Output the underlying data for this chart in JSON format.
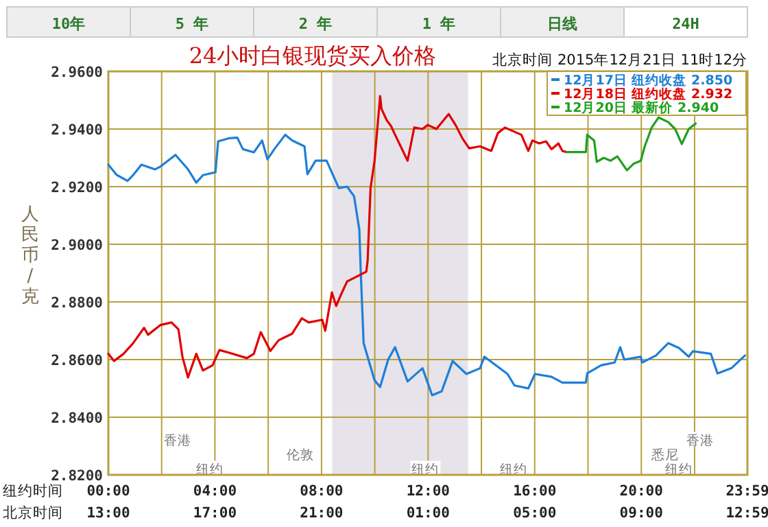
{
  "chart_data": {
    "type": "line",
    "title": "24小时白银现货买入价格",
    "subtitle": "北京时间 2015年12月21日 11时12分",
    "ylabel": "人民币/克",
    "xlabel": "纽约时间",
    "x2label": "北京时间",
    "annotations": [
      "10年",
      "5 年",
      "2 年",
      "1 年",
      "日线",
      "24H",
      {
        "text": "香港",
        "x": 2.6,
        "y": 2.8325
      },
      {
        "text": "伦敦",
        "x": 7.2,
        "y": 2.8275
      },
      {
        "text": "纽约",
        "x": 3.8,
        "y": 2.8225
      },
      {
        "text": "纽约",
        "x": 11.9,
        "y": 2.8225
      },
      {
        "text": "纽约",
        "x": 15.2,
        "y": 2.8225
      },
      {
        "text": "香港",
        "x": 22.2,
        "y": 2.8325
      },
      {
        "text": "悉尼",
        "x": 20.9,
        "y": 2.8275
      },
      {
        "text": "纽约",
        "x": 21.4,
        "y": 2.8225
      }
    ],
    "xlim": [
      0,
      23.983
    ],
    "x2lim": [
      "2015-12-20T13:00",
      "2015-12-21T12:59"
    ],
    "xticks": [
      {
        "value": 0,
        "label": "00:00"
      },
      {
        "value": 2,
        "label": null
      },
      {
        "value": 4,
        "label": "04:00"
      },
      {
        "value": 6,
        "label": null
      },
      {
        "value": 8,
        "label": "08:00"
      },
      {
        "value": 10,
        "label": null
      },
      {
        "value": 12,
        "label": "12:00"
      },
      {
        "value": 14,
        "label": null
      },
      {
        "value": 16,
        "label": "16:00"
      },
      {
        "value": 18,
        "label": null
      },
      {
        "value": 20,
        "label": "20:00"
      },
      {
        "value": 22,
        "label": null
      },
      {
        "value": 23.983,
        "label": "23:59"
      }
    ],
    "x2ticks": [
      {
        "value": "2015-12-20T13:00",
        "label": "13:00"
      },
      {
        "value": "2015-12-20T17:00",
        "label": "17:00"
      },
      {
        "value": "2015-12-20T21:00",
        "label": "21:00"
      },
      {
        "value": "2015-12-21T01:00",
        "label": "01:00"
      },
      {
        "value": "2015-12-21T05:00",
        "label": "05:00"
      },
      {
        "value": "2015-12-21T09:00",
        "label": "09:00"
      },
      {
        "value": "2015-12-21T12:59",
        "label": "12:59"
      }
    ],
    "ylim": [
      2.82,
      2.96
    ],
    "yticks": [
      {
        "value": 2.82,
        "label": "2.8200"
      },
      {
        "value": 2.84,
        "label": "2.8400"
      },
      {
        "value": 2.86,
        "label": "2.8600"
      },
      {
        "value": 2.88,
        "label": "2.8800"
      },
      {
        "value": 2.9,
        "label": "2.9000"
      },
      {
        "value": 2.92,
        "label": "2.9200"
      },
      {
        "value": 2.94,
        "label": "2.9400"
      },
      {
        "value": 2.96,
        "label": "2.9600"
      }
    ],
    "grid": true,
    "legend": "top right",
    "line_style": "solid",
    "marker": "none",
    "bands": [
      {
        "axis": "x",
        "from": 8.4,
        "to": 13.5,
        "color": "#e6e3ea"
      }
    ],
    "series": [
      {
        "name": "12月17日 纽约收盘 2.850",
        "color": "#1e7fd8",
        "x": [
          0,
          0.31,
          0.72,
          0.93,
          1.24,
          1.75,
          1.96,
          2.52,
          2.99,
          3.3,
          3.55,
          4.02,
          4.12,
          4.53,
          4.84,
          5.05,
          5.46,
          5.77,
          5.97,
          6.23,
          6.64,
          6.9,
          7.36,
          7.47,
          7.78,
          8.19,
          8.65,
          8.96,
          9.22,
          9.42,
          9.47,
          9.58,
          9.99,
          10.2,
          10.5,
          10.76,
          11.23,
          11.79,
          12.15,
          12.51,
          12.92,
          13.44,
          13.95,
          14.11,
          14.98,
          15.24,
          15.76,
          16.01,
          16.63,
          17.04,
          17.92,
          17.97,
          18.49,
          19,
          19.21,
          19.36,
          19.98,
          20.03,
          20.55,
          21.01,
          21.42,
          21.78,
          21.94,
          22.61,
          22.86,
          23.38,
          23.89
        ],
        "values": [
          2.9276,
          2.9241,
          2.922,
          2.924,
          2.9276,
          2.926,
          2.927,
          2.931,
          2.926,
          2.9214,
          2.924,
          2.925,
          2.9357,
          2.9368,
          2.937,
          2.933,
          2.9319,
          2.936,
          2.9295,
          2.933,
          2.938,
          2.936,
          2.934,
          2.9243,
          2.929,
          2.929,
          2.9195,
          2.92,
          2.9167,
          2.905,
          2.891,
          2.8657,
          2.8528,
          2.8505,
          2.86,
          2.8643,
          2.8524,
          2.857,
          2.8476,
          2.849,
          2.8595,
          2.855,
          2.857,
          2.861,
          2.855,
          2.851,
          2.85,
          2.855,
          2.854,
          2.852,
          2.852,
          2.8552,
          2.858,
          2.859,
          2.8643,
          2.86,
          2.861,
          2.859,
          2.8614,
          2.8657,
          2.864,
          2.861,
          2.8629,
          2.862,
          2.8552,
          2.857,
          2.8614
        ]
      },
      {
        "name": "12月18日 纽约收盘 2.932",
        "color": "#e00000",
        "x": [
          0,
          0.21,
          0.57,
          0.93,
          1.34,
          1.49,
          1.96,
          2.37,
          2.63,
          2.78,
          2.99,
          3.3,
          3.55,
          3.91,
          4.17,
          4.53,
          5.2,
          5.46,
          5.72,
          6.08,
          6.39,
          6.9,
          7.26,
          7.52,
          8.03,
          8.14,
          8.39,
          8.55,
          8.7,
          8.96,
          9.47,
          9.68,
          9.73,
          9.84,
          9.99,
          10.2,
          10.25,
          10.45,
          10.61,
          10.76,
          10.97,
          11.23,
          11.48,
          11.79,
          11.99,
          12.31,
          12.77,
          13.03,
          13.29,
          13.54,
          13.95,
          14.37,
          14.62,
          14.88,
          15.5,
          15.76,
          15.91,
          16.17,
          16.43,
          16.63,
          16.89,
          17.04,
          17.2
        ],
        "values": [
          2.862,
          2.8595,
          2.862,
          2.8657,
          2.871,
          2.8686,
          2.872,
          2.8729,
          2.8705,
          2.861,
          2.8538,
          2.862,
          2.8562,
          2.858,
          2.8633,
          2.8624,
          2.8605,
          2.862,
          2.8695,
          2.863,
          2.8667,
          2.869,
          2.8743,
          2.8729,
          2.8738,
          2.87,
          2.8833,
          2.8786,
          2.8819,
          2.8871,
          2.8895,
          2.8905,
          2.8943,
          2.9195,
          2.929,
          2.9514,
          2.947,
          2.943,
          2.941,
          2.938,
          2.934,
          2.929,
          2.9405,
          2.94,
          2.9414,
          2.94,
          2.9452,
          2.9414,
          2.9367,
          2.9333,
          2.934,
          2.9324,
          2.9386,
          2.9405,
          2.938,
          2.9324,
          2.936,
          2.935,
          2.9357,
          2.933,
          2.935,
          2.9324,
          2.932
        ]
      },
      {
        "name": "12月20日 最新价 2.940",
        "color": "#20a020",
        "x": [
          17.2,
          17.92,
          17.97,
          18.23,
          18.33,
          18.59,
          18.85,
          19.1,
          19.46,
          19.72,
          19.98,
          20.13,
          20.39,
          20.65,
          21.01,
          21.27,
          21.52,
          21.78,
          22.04
        ],
        "values": [
          2.932,
          2.932,
          2.938,
          2.936,
          2.9286,
          2.93,
          2.929,
          2.9305,
          2.9257,
          2.928,
          2.929,
          2.934,
          2.9405,
          2.944,
          2.9424,
          2.94,
          2.9348,
          2.94,
          2.9419
        ]
      }
    ]
  }
}
